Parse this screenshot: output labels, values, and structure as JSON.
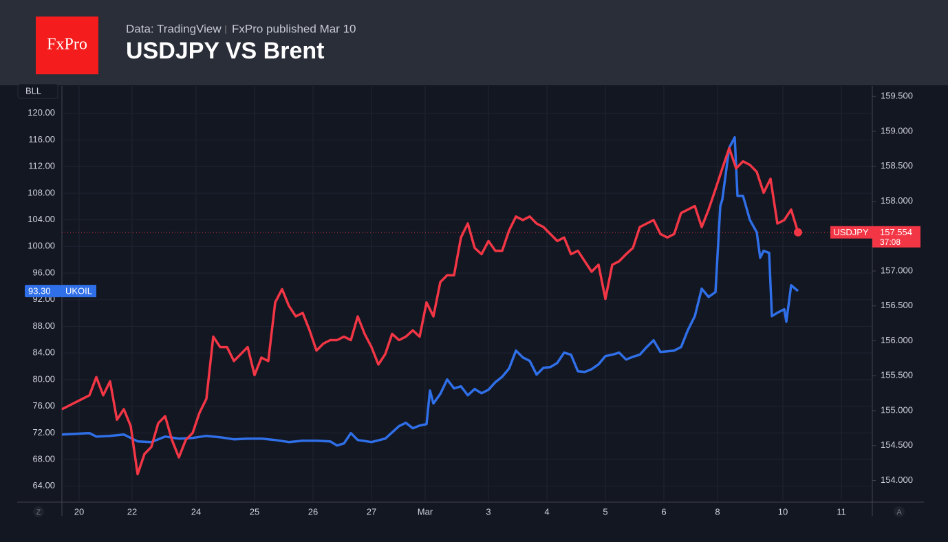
{
  "header": {
    "logo": "FxPro",
    "source": "Data: TradingView",
    "published": "FxPro published Mar 10"
  },
  "chart_data": {
    "type": "line",
    "title": "USDJPY VS Brent",
    "y_label": "BLL",
    "grid": true,
    "xlim": [
      0,
      117.8
    ],
    "xticks": [
      {
        "value": 2.5,
        "label": "20"
      },
      {
        "value": 10.2,
        "label": "22"
      },
      {
        "value": 19.5,
        "label": "24"
      },
      {
        "value": 28,
        "label": "25"
      },
      {
        "value": 36.5,
        "label": "26"
      },
      {
        "value": 45,
        "label": "27"
      },
      {
        "value": 52.8,
        "label": "Mar"
      },
      {
        "value": 62,
        "label": "3"
      },
      {
        "value": 70.5,
        "label": "4"
      },
      {
        "value": 79,
        "label": "5"
      },
      {
        "value": 87.5,
        "label": "6"
      },
      {
        "value": 95.3,
        "label": "8"
      },
      {
        "value": 104.8,
        "label": "10"
      },
      {
        "value": 113.3,
        "label": "11"
      }
    ],
    "ylim": [
      61.6,
      124.1
    ],
    "yticks": [
      {
        "value": 64,
        "label": "64.00"
      },
      {
        "value": 68,
        "label": "68.00"
      },
      {
        "value": 72,
        "label": "72.00"
      },
      {
        "value": 76,
        "label": "76.00"
      },
      {
        "value": 80,
        "label": "80.00"
      },
      {
        "value": 84,
        "label": "84.00"
      },
      {
        "value": 88,
        "label": "88.00"
      },
      {
        "value": 92,
        "label": "92.00"
      },
      {
        "value": 96,
        "label": "96.00"
      },
      {
        "value": 100,
        "label": "100.00"
      },
      {
        "value": 104,
        "label": "104.00"
      },
      {
        "value": 108,
        "label": "108.00"
      },
      {
        "value": 112,
        "label": "112.00"
      },
      {
        "value": 116,
        "label": "116.00"
      },
      {
        "value": 120,
        "label": "120.00"
      }
    ],
    "y2lim": [
      153.69,
      159.65
    ],
    "y2ticks": [
      {
        "value": 154,
        "label": "154.000"
      },
      {
        "value": 154.5,
        "label": "154.500"
      },
      {
        "value": 155,
        "label": "155.000"
      },
      {
        "value": 155.5,
        "label": "155.500"
      },
      {
        "value": 156,
        "label": "156.000"
      },
      {
        "value": 156.5,
        "label": "156.500"
      },
      {
        "value": 157,
        "label": "157.000"
      },
      {
        "value": 157.5,
        "label": "157.500"
      },
      {
        "value": 158,
        "label": "158.000"
      },
      {
        "value": 158.5,
        "label": "158.500"
      },
      {
        "value": 159,
        "label": "159.000"
      },
      {
        "value": 159.5,
        "label": "159.500"
      }
    ],
    "series": [
      {
        "name": "UKOIL",
        "color": "#2f6fe8",
        "last_value_label": "93.30",
        "x": [
          0,
          2,
          4,
          5,
          7,
          9,
          11,
          13,
          15,
          17,
          19,
          21,
          23,
          25,
          27,
          29,
          31,
          33,
          35,
          37,
          39,
          40,
          41,
          42,
          43,
          45,
          47,
          49,
          50,
          51,
          52,
          53,
          53.5,
          54,
          55,
          56,
          57,
          58,
          59,
          60,
          61,
          62,
          63,
          64,
          65,
          66,
          67,
          68,
          69,
          70,
          71,
          72,
          73,
          74,
          75,
          76,
          77,
          78,
          79,
          80,
          81,
          82,
          83,
          84,
          85,
          86,
          87,
          89,
          90,
          91,
          92,
          93,
          94,
          95,
          95.7,
          96,
          97,
          97.8,
          98.2,
          99,
          100,
          101,
          101.5,
          102,
          102.8,
          103.2,
          104,
          105,
          105.3,
          106,
          107
        ],
        "values": [
          71.76,
          71.86,
          71.96,
          71.45,
          71.55,
          71.76,
          70.72,
          70.62,
          71.45,
          71.14,
          71.24,
          71.55,
          71.34,
          71.03,
          71.14,
          71.14,
          70.93,
          70.62,
          70.83,
          70.83,
          70.72,
          70.1,
          70.41,
          71.96,
          70.93,
          70.62,
          71.14,
          73.0,
          73.51,
          72.69,
          73.1,
          73.31,
          78.37,
          76.4,
          77.85,
          80.02,
          78.68,
          78.99,
          77.64,
          78.58,
          77.95,
          78.47,
          79.61,
          80.43,
          81.67,
          84.36,
          83.33,
          82.81,
          80.74,
          81.78,
          81.88,
          82.5,
          84.05,
          83.74,
          81.26,
          81.16,
          81.57,
          82.29,
          83.53,
          83.74,
          84.05,
          83.02,
          83.43,
          83.74,
          84.88,
          85.91,
          84.15,
          84.36,
          84.88,
          87.46,
          89.52,
          93.66,
          92.42,
          93.14,
          106.05,
          107.09,
          114.83,
          116.38,
          107.6,
          107.6,
          103.99,
          102.13,
          98.31,
          99.34,
          99.03,
          89.52,
          90.04,
          90.56,
          88.7,
          94.17,
          93.3
        ]
      },
      {
        "name": "USDJPY",
        "color": "#f23645",
        "axis": "y2",
        "countdown": "37:08",
        "x": [
          0,
          1,
          2,
          3,
          4,
          5,
          6,
          7,
          8,
          9,
          10,
          11,
          12,
          13,
          14,
          15,
          16,
          17,
          18,
          19,
          20,
          21,
          22,
          23,
          24,
          25,
          26,
          27,
          28,
          29,
          30,
          31,
          32,
          33,
          34,
          35,
          36,
          37,
          38,
          39,
          40,
          41,
          42,
          43,
          44,
          45,
          46,
          47,
          48,
          49,
          50,
          51,
          52,
          53,
          54,
          55,
          56,
          57,
          58,
          59,
          60,
          61,
          62,
          63,
          64,
          65,
          66,
          67,
          68,
          69,
          70,
          71,
          72,
          73,
          74,
          75,
          76,
          77,
          78,
          79,
          80,
          81,
          82,
          83,
          84,
          85,
          86,
          87,
          88,
          89,
          90,
          91,
          92,
          93,
          94,
          95,
          96,
          97,
          98,
          99,
          100,
          101,
          102,
          103,
          104,
          105,
          106,
          107
        ],
        "values": [
          155.02,
          155.07,
          155.12,
          155.17,
          155.22,
          155.48,
          155.22,
          155.42,
          154.87,
          155.02,
          154.78,
          154.09,
          154.38,
          154.48,
          154.82,
          154.92,
          154.58,
          154.33,
          154.58,
          154.68,
          154.97,
          155.17,
          156.06,
          155.91,
          155.91,
          155.71,
          155.81,
          155.91,
          155.51,
          155.76,
          155.71,
          156.55,
          156.74,
          156.5,
          156.35,
          156.4,
          156.15,
          155.86,
          155.96,
          156.01,
          156.01,
          156.06,
          156.01,
          156.35,
          156.1,
          155.91,
          155.66,
          155.81,
          156.1,
          156.01,
          156.06,
          156.15,
          156.06,
          156.55,
          156.35,
          156.84,
          156.94,
          156.94,
          157.48,
          157.68,
          157.33,
          157.24,
          157.43,
          157.29,
          157.29,
          157.58,
          157.78,
          157.73,
          157.78,
          157.68,
          157.63,
          157.53,
          157.43,
          157.48,
          157.24,
          157.29,
          157.14,
          156.99,
          157.09,
          156.6,
          157.09,
          157.14,
          157.24,
          157.33,
          157.63,
          157.68,
          157.73,
          157.53,
          157.48,
          157.53,
          157.83,
          157.88,
          157.93,
          157.63,
          157.88,
          158.17,
          158.47,
          158.76,
          158.47,
          158.57,
          158.52,
          158.42,
          158.12,
          158.32,
          157.68,
          157.73,
          157.88,
          157.554
        ]
      }
    ]
  }
}
